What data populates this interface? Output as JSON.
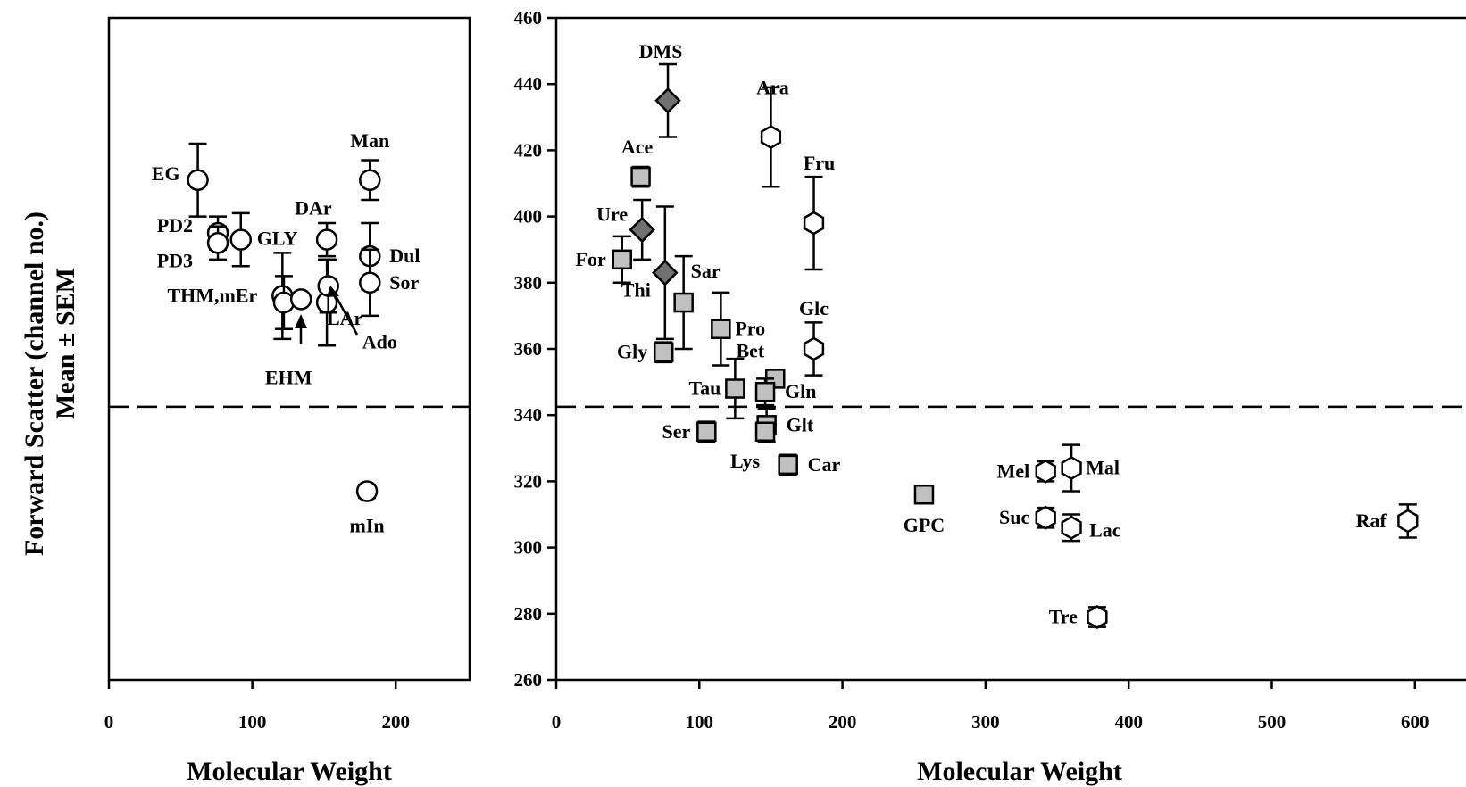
{
  "chart_data": [
    {
      "type": "scatter",
      "panel": "left",
      "xlabel": "Molecular Weight",
      "ylabel": "Forward Scatter (channel no.)",
      "ylabel2": "Mean ± SEM",
      "xlim": [
        0,
        250
      ],
      "ylim": [
        260,
        460
      ],
      "xticks": [
        0,
        100,
        200
      ],
      "reference_line_y": 342.5,
      "points": [
        {
          "label": "EG",
          "x": 62,
          "y": 411,
          "err": 11,
          "marker": "circle"
        },
        {
          "label": "PD2",
          "x": 76,
          "y": 395,
          "err": 5,
          "marker": "circle"
        },
        {
          "label": "PD3",
          "x": 76,
          "y": 392,
          "err": 5,
          "marker": "circle"
        },
        {
          "label": "GLY",
          "x": 92,
          "y": 393,
          "err": 8,
          "marker": "circle"
        },
        {
          "label": "THM,mEr",
          "x": 121,
          "y": 376,
          "err": 13,
          "marker": "circle"
        },
        {
          "label": "",
          "x": 122,
          "y": 374,
          "err": 8,
          "marker": "circle"
        },
        {
          "label": "EHM",
          "x": 134,
          "y": 375,
          "err": 0,
          "marker": "circle"
        },
        {
          "label": "LAr",
          "x": 152,
          "y": 374,
          "err": 13,
          "marker": "circle"
        },
        {
          "label": "DAr",
          "x": 152,
          "y": 393,
          "err": 5,
          "marker": "circle"
        },
        {
          "label": "Ado",
          "x": 153,
          "y": 379,
          "err": 8,
          "marker": "circle"
        },
        {
          "label": "Man",
          "x": 182,
          "y": 411,
          "err": 6,
          "marker": "circle"
        },
        {
          "label": "Dul",
          "x": 182,
          "y": 388,
          "err": 10,
          "marker": "circle"
        },
        {
          "label": "Sor",
          "x": 182,
          "y": 380,
          "err": 10,
          "marker": "circle"
        },
        {
          "label": "mIn",
          "x": 180,
          "y": 317,
          "err": 2,
          "marker": "circle"
        }
      ]
    },
    {
      "type": "scatter",
      "panel": "right",
      "xlabel": "Molecular Weight",
      "xlim": [
        0,
        640
      ],
      "ylim": [
        260,
        460
      ],
      "xticks": [
        0,
        100,
        200,
        300,
        400,
        500,
        600
      ],
      "yticks": [
        260,
        280,
        300,
        320,
        340,
        360,
        380,
        400,
        420,
        440,
        460
      ],
      "reference_line_y": 342.5,
      "points": [
        {
          "label": "DMS",
          "x": 78,
          "y": 435,
          "err": 11,
          "marker": "diamond"
        },
        {
          "label": "Ure",
          "x": 60,
          "y": 396,
          "err": 9,
          "marker": "diamond"
        },
        {
          "label": "Thi",
          "x": 76,
          "y": 383,
          "err": 20,
          "marker": "diamond"
        },
        {
          "label": "Ace",
          "x": 59,
          "y": 412,
          "err": 3,
          "marker": "square"
        },
        {
          "label": "For",
          "x": 46,
          "y": 387,
          "err": 7,
          "marker": "square"
        },
        {
          "label": "Sar",
          "x": 89,
          "y": 374,
          "err": 14,
          "marker": "square"
        },
        {
          "label": "Gly",
          "x": 75,
          "y": 359,
          "err": 3,
          "marker": "square"
        },
        {
          "label": "Pro",
          "x": 115,
          "y": 366,
          "err": 11,
          "marker": "square"
        },
        {
          "label": "Tau",
          "x": 125,
          "y": 348,
          "err": 9,
          "marker": "square"
        },
        {
          "label": "Bet",
          "x": 153,
          "y": 351,
          "err": 2,
          "marker": "square"
        },
        {
          "label": "Gln",
          "x": 146,
          "y": 347,
          "err": 4,
          "marker": "square"
        },
        {
          "label": "Glt",
          "x": 147,
          "y": 337,
          "err": 5,
          "marker": "square"
        },
        {
          "label": "Ser",
          "x": 105,
          "y": 335,
          "err": 3,
          "marker": "square"
        },
        {
          "label": "Lys",
          "x": 146,
          "y": 335,
          "err": 0,
          "marker": "square"
        },
        {
          "label": "Car",
          "x": 162,
          "y": 325,
          "err": 3,
          "marker": "square"
        },
        {
          "label": "GPC",
          "x": 257,
          "y": 316,
          "err": 0,
          "marker": "square"
        },
        {
          "label": "Ara",
          "x": 150,
          "y": 424,
          "err": 15,
          "marker": "hexagon"
        },
        {
          "label": "Fru",
          "x": 180,
          "y": 398,
          "err": 14,
          "marker": "hexagon"
        },
        {
          "label": "Glc",
          "x": 180,
          "y": 360,
          "err": 8,
          "marker": "hexagon"
        },
        {
          "label": "Mel",
          "x": 342,
          "y": 323,
          "err": 3,
          "marker": "hexagon"
        },
        {
          "label": "Mal",
          "x": 360,
          "y": 324,
          "err": 7,
          "marker": "hexagon"
        },
        {
          "label": "Suc",
          "x": 342,
          "y": 309,
          "err": 3,
          "marker": "hexagon"
        },
        {
          "label": "Lac",
          "x": 360,
          "y": 306,
          "err": 4,
          "marker": "hexagon"
        },
        {
          "label": "Tre",
          "x": 378,
          "y": 279,
          "err": 3,
          "marker": "hexagon"
        },
        {
          "label": "Raf",
          "x": 595,
          "y": 308,
          "err": 5,
          "marker": "hexagon"
        }
      ]
    }
  ],
  "colors": {
    "axis": "#000000",
    "open_marker_fill": "#ffffff",
    "square_fill": "#c0c0c0",
    "diamond_fill": "#707070"
  }
}
